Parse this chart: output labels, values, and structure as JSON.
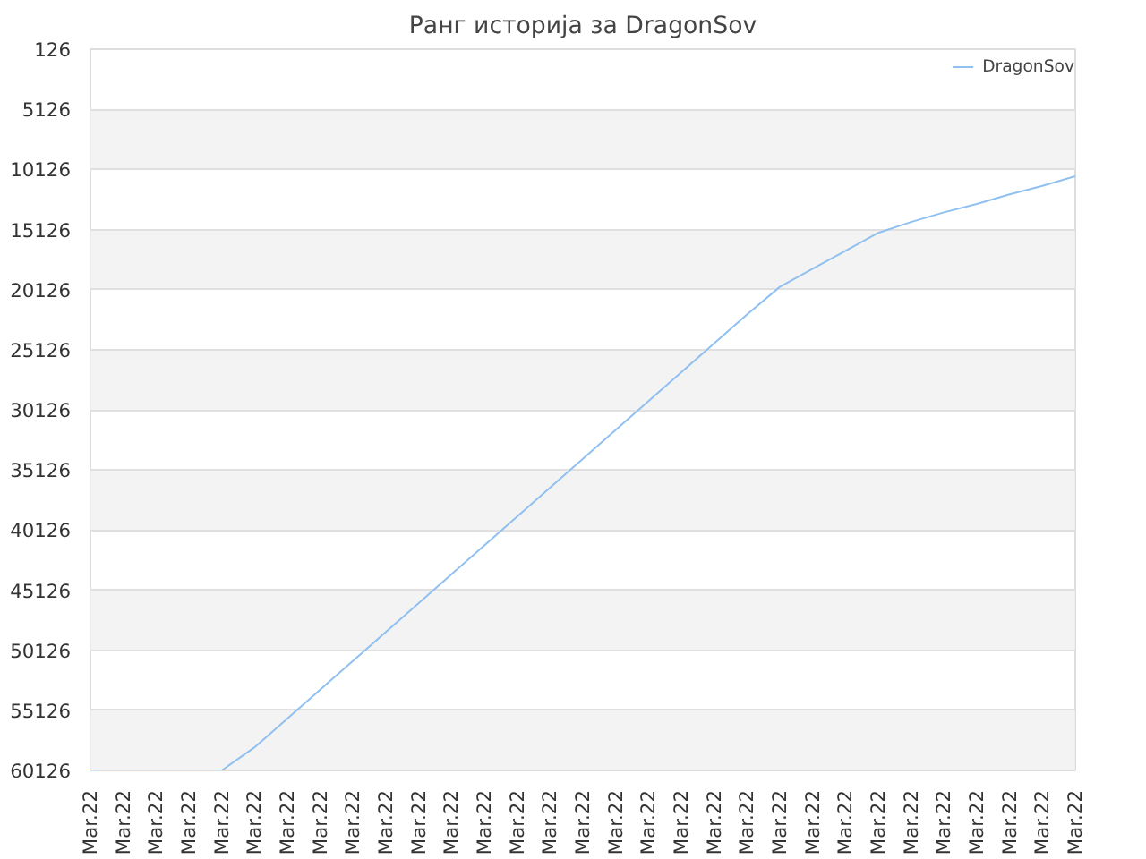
{
  "chart_data": {
    "type": "line",
    "title": "Ранг историја за DragonSov",
    "categories": [
      "Mar.22",
      "Mar.22",
      "Mar.22",
      "Mar.22",
      "Mar.22",
      "Mar.22",
      "Mar.22",
      "Mar.22",
      "Mar.22",
      "Mar.22",
      "Mar.22",
      "Mar.22",
      "Mar.22",
      "Mar.22",
      "Mar.22",
      "Mar.22",
      "Mar.22",
      "Mar.22",
      "Mar.22",
      "Mar.22",
      "Mar.22",
      "Mar.22",
      "Mar.22",
      "Mar.22",
      "Mar.22",
      "Mar.22",
      "Mar.22",
      "Mar.22",
      "Mar.22",
      "Mar.22",
      "Mar.22"
    ],
    "series": [
      {
        "name": "DragonSov",
        "color": "#90c0f0",
        "values": [
          60126,
          60126,
          60126,
          60126,
          60126,
          58200,
          55800,
          53400,
          51000,
          48600,
          46200,
          43800,
          41400,
          39000,
          36600,
          34200,
          31800,
          29400,
          27000,
          24600,
          22200,
          19900,
          18400,
          16900,
          15400,
          14500,
          13700,
          13000,
          12200,
          11500,
          10700
        ]
      }
    ],
    "ylim": [
      60126,
      126
    ],
    "yticks": [
      126,
      5126,
      10126,
      15126,
      20126,
      25126,
      30126,
      35126,
      40126,
      45126,
      50126,
      55126,
      60126
    ],
    "grid": "y",
    "legend": "top right",
    "marker": "none",
    "line_style": "solid"
  }
}
